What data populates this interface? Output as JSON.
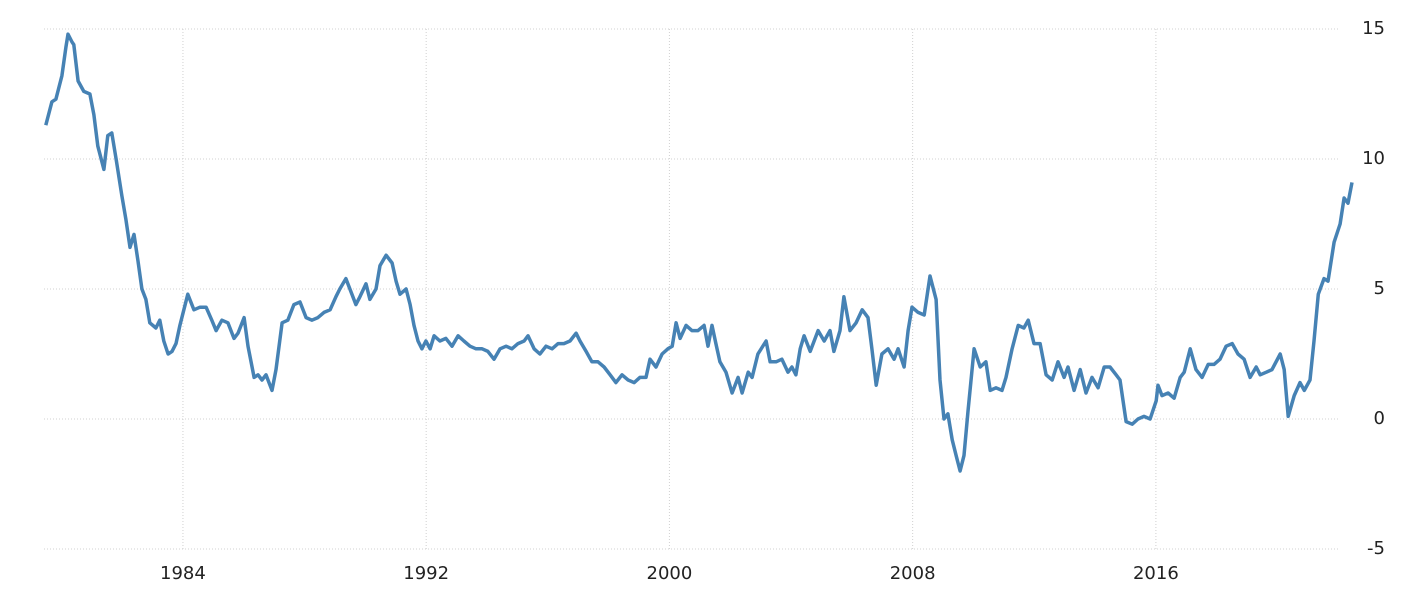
{
  "chart_data": {
    "type": "line",
    "x": [
      1979.49,
      1979.69,
      1979.82,
      1980.02,
      1980.15,
      1980.22,
      1980.35,
      1980.41,
      1980.55,
      1980.74,
      1980.94,
      1981.07,
      1981.2,
      1981.4,
      1981.53,
      1981.66,
      1981.8,
      1981.99,
      1982.12,
      1982.26,
      1982.39,
      1982.52,
      1982.65,
      1982.78,
      1982.91,
      1983.11,
      1983.24,
      1983.37,
      1983.51,
      1983.64,
      1983.77,
      1983.9,
      1984.16,
      1984.36,
      1984.56,
      1984.76,
      1984.95,
      1985.09,
      1985.28,
      1985.48,
      1985.68,
      1985.81,
      1986.01,
      1986.14,
      1986.34,
      1986.47,
      1986.6,
      1986.73,
      1986.93,
      1987.06,
      1987.26,
      1987.45,
      1987.65,
      1987.85,
      1988.05,
      1988.24,
      1988.44,
      1988.64,
      1988.84,
      1989.03,
      1989.16,
      1989.36,
      1989.49,
      1989.69,
      1989.82,
      1990.02,
      1990.15,
      1990.35,
      1990.48,
      1990.68,
      1990.88,
      1991.01,
      1991.14,
      1991.34,
      1991.47,
      1991.6,
      1991.73,
      1991.86,
      1991.99,
      1992.13,
      1992.26,
      1992.45,
      1992.65,
      1992.85,
      1993.05,
      1993.24,
      1993.44,
      1993.64,
      1993.84,
      1994.03,
      1994.23,
      1994.43,
      1994.63,
      1994.82,
      1995.02,
      1995.22,
      1995.35,
      1995.55,
      1995.74,
      1995.94,
      1996.14,
      1996.34,
      1996.53,
      1996.73,
      1996.93,
      1997.06,
      1997.26,
      1997.45,
      1997.65,
      1997.85,
      1998.05,
      1998.24,
      1998.44,
      1998.64,
      1998.84,
      1999.03,
      1999.23,
      1999.36,
      1999.56,
      1999.76,
      1999.95,
      2000.09,
      2000.22,
      2000.35,
      2000.55,
      2000.74,
      2000.94,
      2001.14,
      2001.27,
      2001.4,
      2001.53,
      2001.66,
      2001.86,
      2002.06,
      2002.26,
      2002.39,
      2002.59,
      2002.72,
      2002.91,
      2003.18,
      2003.31,
      2003.51,
      2003.7,
      2003.9,
      2004.03,
      2004.16,
      2004.3,
      2004.43,
      2004.63,
      2004.89,
      2005.09,
      2005.28,
      2005.41,
      2005.61,
      2005.74,
      2005.94,
      2006.14,
      2006.34,
      2006.53,
      2006.66,
      2006.8,
      2006.99,
      2007.19,
      2007.39,
      2007.52,
      2007.72,
      2007.85,
      2007.98,
      2008.18,
      2008.38,
      2008.57,
      2008.77,
      2008.9,
      2009.03,
      2009.16,
      2009.3,
      2009.43,
      2009.56,
      2009.69,
      2009.82,
      2010.02,
      2010.22,
      2010.41,
      2010.55,
      2010.74,
      2010.94,
      2011.07,
      2011.27,
      2011.47,
      2011.66,
      2011.8,
      2011.99,
      2012.19,
      2012.39,
      2012.59,
      2012.78,
      2012.98,
      2013.11,
      2013.31,
      2013.51,
      2013.7,
      2013.9,
      2014.1,
      2014.3,
      2014.49,
      2014.69,
      2014.82,
      2015.02,
      2015.22,
      2015.41,
      2015.61,
      2015.81,
      2016.01,
      2016.07,
      2016.2,
      2016.4,
      2016.6,
      2016.8,
      2016.93,
      2017.13,
      2017.32,
      2017.52,
      2017.72,
      2017.91,
      2018.11,
      2018.31,
      2018.51,
      2018.7,
      2018.9,
      2019.1,
      2019.3,
      2019.43,
      2019.63,
      2019.82,
      2020.09,
      2020.22,
      2020.35,
      2020.55,
      2020.74,
      2020.88,
      2021.07,
      2021.2,
      2021.34,
      2021.53,
      2021.66,
      2021.86,
      2022.06,
      2022.19,
      2022.32,
      2022.45
    ],
    "series": [
      {
        "color": "#4682b4",
        "values": [
          11.3,
          12.2,
          12.3,
          13.2,
          14.3,
          14.8,
          14.5,
          14.4,
          13.0,
          12.6,
          12.5,
          11.7,
          10.5,
          9.6,
          10.9,
          11.0,
          10.0,
          8.6,
          7.7,
          6.6,
          7.1,
          6.1,
          5.0,
          4.6,
          3.7,
          3.5,
          3.8,
          3.0,
          2.5,
          2.6,
          2.9,
          3.6,
          4.8,
          4.2,
          4.3,
          4.3,
          3.8,
          3.4,
          3.8,
          3.7,
          3.1,
          3.3,
          3.9,
          2.8,
          1.6,
          1.7,
          1.5,
          1.7,
          1.1,
          1.9,
          3.7,
          3.8,
          4.4,
          4.5,
          3.9,
          3.8,
          3.9,
          4.1,
          4.2,
          4.7,
          5.0,
          5.4,
          5.0,
          4.4,
          4.7,
          5.2,
          4.6,
          5.0,
          5.9,
          6.3,
          6.0,
          5.3,
          4.8,
          5.0,
          4.4,
          3.6,
          3.0,
          2.7,
          3.0,
          2.7,
          3.2,
          3.0,
          3.1,
          2.8,
          3.2,
          3.0,
          2.8,
          2.7,
          2.7,
          2.6,
          2.3,
          2.7,
          2.8,
          2.7,
          2.9,
          3.0,
          3.2,
          2.7,
          2.5,
          2.8,
          2.7,
          2.9,
          2.9,
          3.0,
          3.3,
          3.0,
          2.6,
          2.2,
          2.2,
          2.0,
          1.7,
          1.4,
          1.7,
          1.5,
          1.4,
          1.6,
          1.6,
          2.3,
          2.0,
          2.5,
          2.7,
          2.8,
          3.7,
          3.1,
          3.6,
          3.4,
          3.4,
          3.6,
          2.8,
          3.6,
          2.9,
          2.2,
          1.8,
          1.0,
          1.6,
          1.0,
          1.8,
          1.6,
          2.5,
          3.0,
          2.2,
          2.2,
          2.3,
          1.8,
          2.0,
          1.7,
          2.7,
          3.2,
          2.6,
          3.4,
          3.0,
          3.4,
          2.6,
          3.4,
          4.7,
          3.4,
          3.7,
          4.2,
          3.9,
          2.7,
          1.3,
          2.5,
          2.7,
          2.3,
          2.7,
          2.0,
          3.4,
          4.3,
          4.1,
          4.0,
          5.5,
          4.6,
          1.5,
          0.0,
          0.2,
          -0.8,
          -1.4,
          -2.0,
          -1.4,
          0.3,
          2.7,
          2.0,
          2.2,
          1.1,
          1.2,
          1.1,
          1.6,
          2.7,
          3.6,
          3.5,
          3.8,
          2.9,
          2.9,
          1.7,
          1.5,
          2.2,
          1.6,
          2.0,
          1.1,
          1.9,
          1.0,
          1.6,
          1.2,
          2.0,
          2.0,
          1.7,
          1.5,
          -0.1,
          -0.2,
          0.0,
          0.1,
          0.0,
          0.7,
          1.3,
          0.9,
          1.0,
          0.8,
          1.6,
          1.8,
          2.7,
          1.9,
          1.6,
          2.1,
          2.1,
          2.3,
          2.8,
          2.9,
          2.5,
          2.3,
          1.6,
          2.0,
          1.7,
          1.8,
          1.9,
          2.5,
          1.9,
          0.1,
          0.9,
          1.4,
          1.1,
          1.5,
          3.0,
          4.8,
          5.4,
          5.3,
          6.8,
          7.5,
          8.5,
          8.3,
          9.1
        ]
      }
    ],
    "xlim": [
      1979.43,
      2022.45
    ],
    "xticks": [
      1984,
      1992,
      2000,
      2008,
      2016
    ],
    "ylim": [
      -5,
      15
    ],
    "yticks": [
      -5,
      0,
      5,
      10,
      15
    ],
    "grid": true
  }
}
